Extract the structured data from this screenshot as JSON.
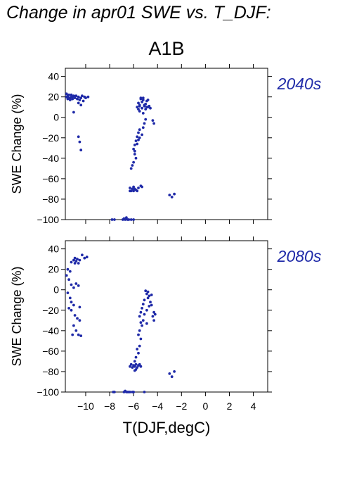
{
  "title": "Change in apr01 SWE vs. T_DJF:",
  "scenario": "A1B",
  "colors": {
    "points": "#1f2aa8",
    "period_label": "#1f2aa8",
    "axes": "#000000"
  },
  "chart_data": [
    {
      "type": "scatter",
      "period_label": "2040s",
      "xlabel": "T(DJF,degC)",
      "ylabel": "SWE Change (%)",
      "xlim": [
        -11.7,
        5.2
      ],
      "ylim": [
        -100,
        48
      ],
      "xticks": [
        -10,
        -8,
        -6,
        -4,
        -2,
        0,
        2,
        4
      ],
      "yticks": [
        40,
        20,
        0,
        -20,
        -40,
        -60,
        -80,
        -100
      ],
      "xtick_labels": [
        "−10",
        "−8",
        "−6",
        "−4",
        "−2",
        "0",
        "2",
        "4"
      ],
      "ytick_labels": [
        "40",
        "20",
        "0",
        "−20",
        "−40",
        "−60",
        "−80",
        "−100"
      ],
      "x_tick_labels_visible": false,
      "grid": false,
      "points": [
        [
          -11.6,
          23
        ],
        [
          -11.5,
          21
        ],
        [
          -11.4,
          22
        ],
        [
          -11.3,
          19
        ],
        [
          -11.2,
          20
        ],
        [
          -11.1,
          18
        ],
        [
          -11.0,
          21
        ],
        [
          -11.5,
          18
        ],
        [
          -11.3,
          17
        ],
        [
          -11.2,
          22
        ],
        [
          -11.1,
          20
        ],
        [
          -10.9,
          19
        ],
        [
          -10.8,
          21
        ],
        [
          -10.7,
          18
        ],
        [
          -10.6,
          20
        ],
        [
          -10.5,
          17
        ],
        [
          -10.4,
          19
        ],
        [
          -10.3,
          21
        ],
        [
          -10.2,
          16
        ],
        [
          -10.1,
          20
        ],
        [
          -10.0,
          19
        ],
        [
          -9.8,
          20
        ],
        [
          -10.6,
          14
        ],
        [
          -10.4,
          12
        ],
        [
          -11.0,
          5
        ],
        [
          -10.6,
          -19
        ],
        [
          -10.5,
          -24
        ],
        [
          -10.4,
          -32
        ],
        [
          -11.6,
          20
        ],
        [
          -11.4,
          19
        ],
        [
          -5.6,
          14
        ],
        [
          -5.5,
          12
        ],
        [
          -5.4,
          18
        ],
        [
          -5.3,
          15
        ],
        [
          -5.2,
          17
        ],
        [
          -5.1,
          11
        ],
        [
          -5.0,
          13
        ],
        [
          -4.9,
          16
        ],
        [
          -4.8,
          10
        ],
        [
          -5.7,
          10
        ],
        [
          -5.6,
          8
        ],
        [
          -5.5,
          11
        ],
        [
          -5.3,
          9
        ],
        [
          -5.1,
          12
        ],
        [
          -5.0,
          8
        ],
        [
          -4.9,
          10
        ],
        [
          -4.7,
          11
        ],
        [
          -4.6,
          9
        ],
        [
          -5.4,
          19
        ],
        [
          -5.2,
          19
        ],
        [
          -4.8,
          17
        ],
        [
          -5.5,
          6
        ],
        [
          -5.2,
          4
        ],
        [
          -4.4,
          -3
        ],
        [
          -4.3,
          -6
        ],
        [
          -5.0,
          -2
        ],
        [
          -5.1,
          -6
        ],
        [
          -5.2,
          -10
        ],
        [
          -5.5,
          -12
        ],
        [
          -5.6,
          -15
        ],
        [
          -5.7,
          -19
        ],
        [
          -5.8,
          -23
        ],
        [
          -5.9,
          -27
        ],
        [
          -5.6,
          -22
        ],
        [
          -5.3,
          -17
        ],
        [
          -6.0,
          -31
        ],
        [
          -5.9,
          -36
        ],
        [
          -5.8,
          -40
        ],
        [
          -6.0,
          -44
        ],
        [
          -6.1,
          -47
        ],
        [
          -6.2,
          -50
        ],
        [
          -5.9,
          -33
        ],
        [
          -5.7,
          -26
        ],
        [
          -5.5,
          -20
        ],
        [
          -6.3,
          -69
        ],
        [
          -6.1,
          -70
        ],
        [
          -6.0,
          -72
        ],
        [
          -5.9,
          -70
        ],
        [
          -5.8,
          -71
        ],
        [
          -5.6,
          -69
        ],
        [
          -6.2,
          -72
        ],
        [
          -6.0,
          -68
        ],
        [
          -5.7,
          -72
        ],
        [
          -5.4,
          -67
        ],
        [
          -5.3,
          -68
        ],
        [
          -6.3,
          -72
        ],
        [
          -3.0,
          -76
        ],
        [
          -2.8,
          -78
        ],
        [
          -2.6,
          -75
        ],
        [
          -7.8,
          -100
        ],
        [
          -7.6,
          -100
        ],
        [
          -6.8,
          -99
        ],
        [
          -6.7,
          -100
        ],
        [
          -6.5,
          -100
        ],
        [
          -6.4,
          -100
        ],
        [
          -6.2,
          -100
        ],
        [
          -6.0,
          -100
        ],
        [
          -6.6,
          -98
        ],
        [
          -6.9,
          -100
        ]
      ]
    },
    {
      "type": "scatter",
      "period_label": "2080s",
      "xlabel": "T(DJF,degC)",
      "ylabel": "SWE Change (%)",
      "xlim": [
        -11.7,
        5.2
      ],
      "ylim": [
        -100,
        48
      ],
      "xticks": [
        -10,
        -8,
        -6,
        -4,
        -2,
        0,
        2,
        4
      ],
      "yticks": [
        40,
        20,
        0,
        -20,
        -40,
        -60,
        -80,
        -100
      ],
      "xtick_labels": [
        "−10",
        "−8",
        "−6",
        "−4",
        "−2",
        "0",
        "2",
        "4"
      ],
      "ytick_labels": [
        "40",
        "20",
        "0",
        "−20",
        "−40",
        "−60",
        "−80",
        "−100"
      ],
      "x_tick_labels_visible": true,
      "grid": false,
      "points": [
        [
          -11.5,
          20
        ],
        [
          -11.3,
          18
        ],
        [
          -11.0,
          29
        ],
        [
          -10.9,
          31
        ],
        [
          -10.8,
          28
        ],
        [
          -10.7,
          30
        ],
        [
          -10.5,
          29
        ],
        [
          -10.3,
          34
        ],
        [
          -10.1,
          31
        ],
        [
          -9.9,
          32
        ],
        [
          -10.9,
          26
        ],
        [
          -11.2,
          27
        ],
        [
          -10.6,
          26
        ],
        [
          -11.6,
          14
        ],
        [
          -11.4,
          10
        ],
        [
          -11.2,
          5
        ],
        [
          -11.0,
          2
        ],
        [
          -10.8,
          6
        ],
        [
          -10.6,
          4
        ],
        [
          -11.5,
          -3
        ],
        [
          -11.3,
          -8
        ],
        [
          -11.2,
          -12
        ],
        [
          -11.0,
          -15
        ],
        [
          -11.4,
          -18
        ],
        [
          -11.2,
          -20
        ],
        [
          -10.9,
          -25
        ],
        [
          -10.7,
          -28
        ],
        [
          -10.5,
          -30
        ],
        [
          -11.0,
          -35
        ],
        [
          -10.8,
          -40
        ],
        [
          -10.6,
          -44
        ],
        [
          -10.4,
          -45
        ],
        [
          -11.1,
          -44
        ],
        [
          -10.5,
          -17
        ],
        [
          -5.0,
          -1
        ],
        [
          -4.9,
          -4
        ],
        [
          -4.8,
          -8
        ],
        [
          -4.7,
          -6
        ],
        [
          -5.1,
          -10
        ],
        [
          -5.2,
          -14
        ],
        [
          -4.6,
          -12
        ],
        [
          -4.5,
          -15
        ],
        [
          -5.3,
          -18
        ],
        [
          -5.4,
          -22
        ],
        [
          -4.9,
          -20
        ],
        [
          -4.3,
          -22
        ],
        [
          -4.2,
          -24
        ],
        [
          -4.4,
          -26
        ],
        [
          -4.3,
          -30
        ],
        [
          -4.5,
          -5
        ],
        [
          -5.5,
          -26
        ],
        [
          -5.1,
          -24
        ],
        [
          -5.2,
          -30
        ],
        [
          -5.4,
          -32
        ],
        [
          -5.3,
          -35
        ],
        [
          -4.9,
          -33
        ],
        [
          -5.5,
          -40
        ],
        [
          -5.6,
          -44
        ],
        [
          -5.4,
          -48
        ],
        [
          -5.5,
          -55
        ],
        [
          -5.7,
          -58
        ],
        [
          -5.6,
          -62
        ],
        [
          -5.8,
          -66
        ],
        [
          -5.9,
          -70
        ],
        [
          -4.8,
          -2
        ],
        [
          -4.7,
          -16
        ],
        [
          -6.2,
          -73
        ],
        [
          -6.0,
          -74
        ],
        [
          -5.9,
          -75
        ],
        [
          -5.8,
          -73
        ],
        [
          -5.7,
          -76
        ],
        [
          -5.6,
          -74
        ],
        [
          -5.5,
          -73
        ],
        [
          -6.1,
          -76
        ],
        [
          -5.9,
          -79
        ],
        [
          -6.3,
          -75
        ],
        [
          -5.8,
          -78
        ],
        [
          -5.4,
          -75
        ],
        [
          -3.0,
          -82
        ],
        [
          -2.8,
          -85
        ],
        [
          -2.6,
          -80
        ],
        [
          -7.7,
          -100
        ],
        [
          -7.6,
          -100
        ],
        [
          -6.8,
          -100
        ],
        [
          -6.6,
          -100
        ],
        [
          -6.5,
          -100
        ],
        [
          -6.4,
          -100
        ],
        [
          -6.3,
          -100
        ],
        [
          -6.1,
          -100
        ],
        [
          -6.0,
          -100
        ],
        [
          -6.7,
          -99
        ],
        [
          -5.1,
          -100
        ]
      ]
    }
  ]
}
